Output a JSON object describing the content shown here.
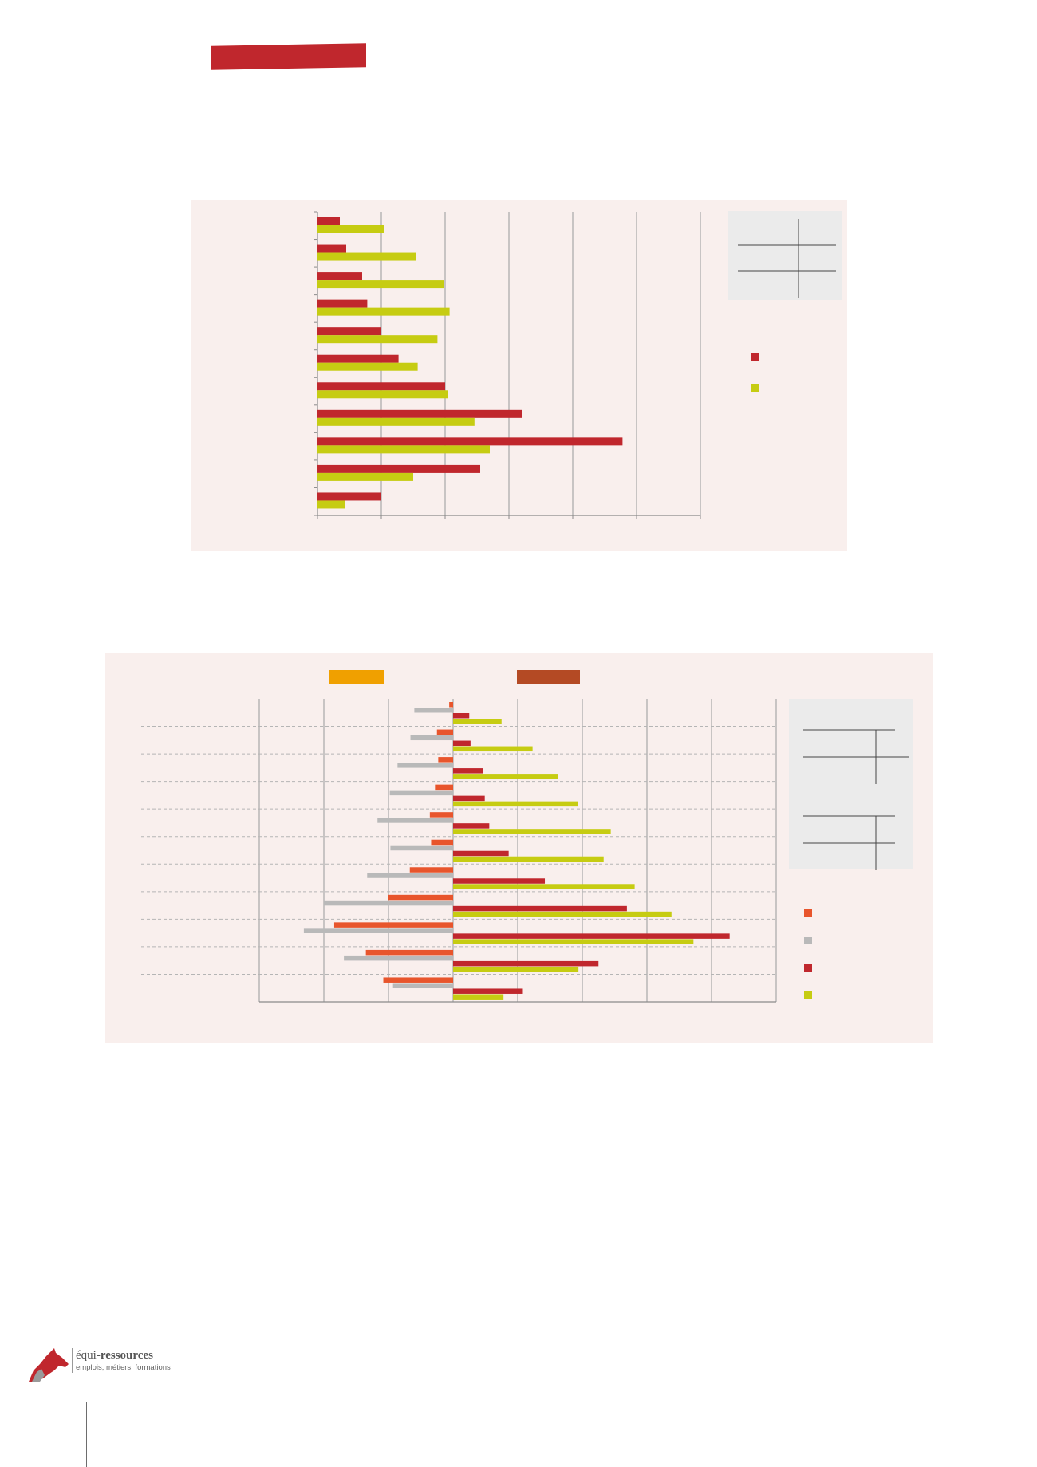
{
  "colors": {
    "red": "#c0272d",
    "lime": "#c6cc12",
    "orange": "#e8552c",
    "gray": "#b9b9b9",
    "panel": "#f9efed",
    "legend_box": "#ebebeb",
    "header_orange": "#f0a000",
    "header_brown": "#b44a24"
  },
  "chart_data": [
    {
      "type": "bar",
      "orientation": "horizontal",
      "grid": true,
      "title": "",
      "xlabel": "",
      "ylabel": "",
      "xlim": [
        0,
        6
      ],
      "categories": [
        "",
        "",
        "",
        "",
        "",
        "",
        "",
        "",
        "",
        "",
        ""
      ],
      "series": [
        {
          "color": "#c0272d",
          "values": [
            0.35,
            0.45,
            0.7,
            0.78,
            1.0,
            1.27,
            2.0,
            3.2,
            4.78,
            2.55,
            1.0
          ]
        },
        {
          "color": "#c6cc12",
          "values": [
            1.05,
            1.55,
            1.98,
            2.07,
            1.88,
            1.57,
            2.04,
            2.46,
            2.7,
            1.5,
            0.43
          ]
        }
      ],
      "legend_position": "right"
    },
    {
      "type": "bar",
      "orientation": "horizontal",
      "diverging": true,
      "grid": true,
      "title": "",
      "xlabel": "",
      "ylabel": "",
      "xlim": [
        -3,
        5
      ],
      "categories": [
        "",
        "",
        "",
        "",
        "",
        "",
        "",
        "",
        "",
        "",
        ""
      ],
      "series": [
        {
          "color": "#e8552c",
          "values": [
            -0.06,
            -0.25,
            -0.23,
            -0.28,
            -0.36,
            -0.34,
            -0.67,
            -1.01,
            -1.84,
            -1.35,
            -1.08
          ]
        },
        {
          "color": "#b9b9b9",
          "values": [
            -0.6,
            -0.66,
            -0.86,
            -0.98,
            -1.17,
            -0.97,
            -1.33,
            -2.0,
            -2.31,
            -1.69,
            -0.93
          ]
        },
        {
          "color": "#c0272d",
          "values": [
            0.25,
            0.27,
            0.46,
            0.49,
            0.56,
            0.86,
            1.42,
            2.69,
            4.28,
            2.25,
            1.08
          ]
        },
        {
          "color": "#c6cc12",
          "values": [
            0.75,
            1.23,
            1.62,
            1.93,
            2.44,
            2.33,
            2.81,
            3.38,
            3.72,
            1.94,
            0.78
          ]
        }
      ],
      "legend_position": "right"
    }
  ]
}
